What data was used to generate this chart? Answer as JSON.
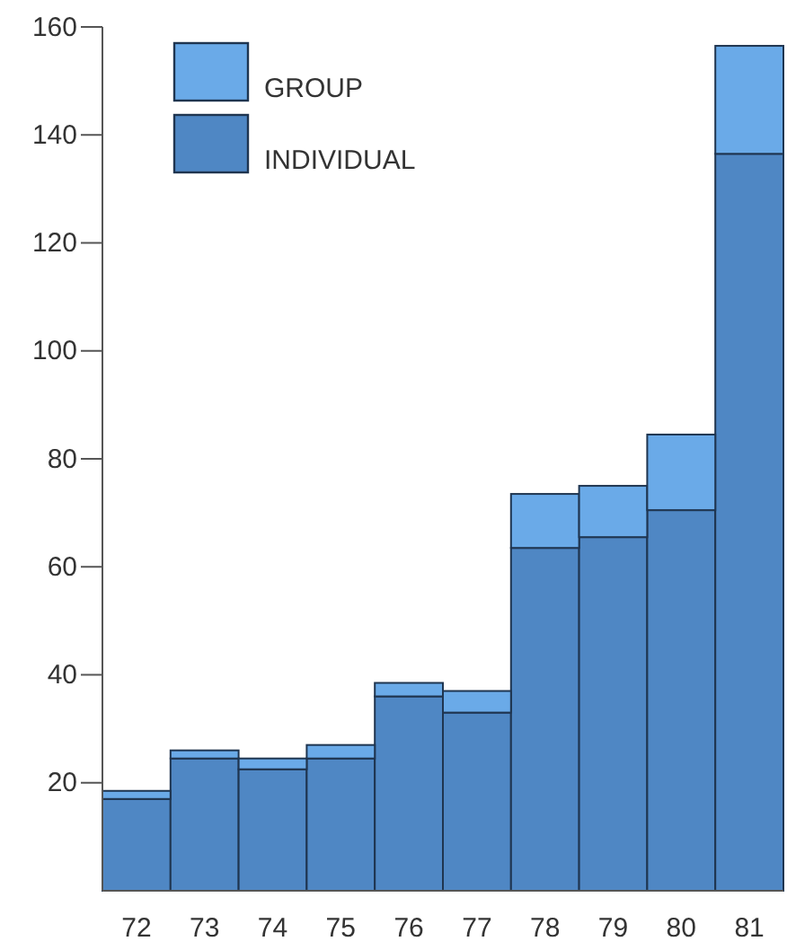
{
  "chart_data": {
    "type": "bar",
    "stacked": true,
    "categories": [
      "72",
      "73",
      "74",
      "75",
      "76",
      "77",
      "78",
      "79",
      "80",
      "81"
    ],
    "series": [
      {
        "name": "INDIVIDUAL",
        "color": "#4f87c4",
        "values": [
          17,
          24.5,
          22.5,
          24.5,
          36,
          33,
          63.5,
          65.5,
          70.5,
          136.5
        ]
      },
      {
        "name": "GROUP",
        "color": "#6aaae8",
        "values": [
          1.5,
          1.5,
          2,
          2.5,
          2.5,
          4,
          10,
          9.5,
          14,
          20
        ]
      }
    ],
    "ylim": [
      0,
      160
    ],
    "yticks": [
      20,
      40,
      60,
      80,
      100,
      120,
      140,
      160
    ],
    "grid": false,
    "legend": "top left"
  }
}
